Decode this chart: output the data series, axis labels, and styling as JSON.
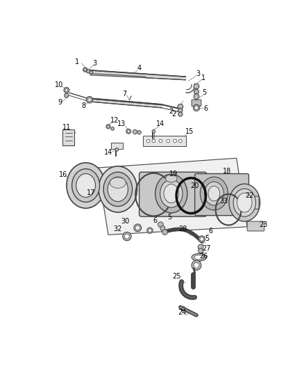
{
  "bg_color": "#ffffff",
  "dgray": "#444444",
  "mgray": "#888888",
  "lgray": "#bbbbbb",
  "black": "#111111"
}
